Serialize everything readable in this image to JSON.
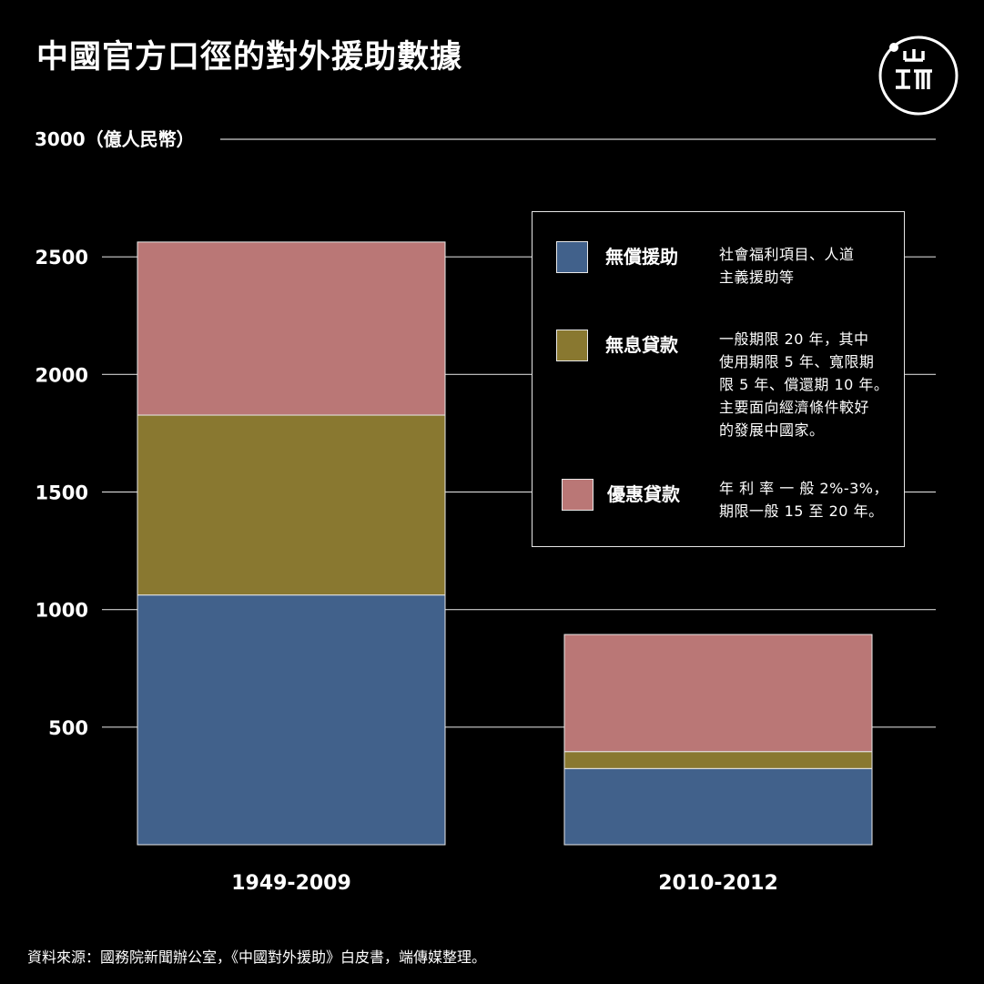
{
  "title": "中國官方口徑的對外援助數據",
  "source": "資料來源：國務院新聞辦公室，《中國對外援助》白皮書，端傳媒整理。",
  "colors": {
    "background": "#000000",
    "grant": "#41618b",
    "interest_free": "#897830",
    "concessional": "#ba7776",
    "gridline": "#cfcfcf"
  },
  "chart_data": {
    "type": "bar",
    "stacked": true,
    "categories": [
      "1949-2009",
      "2010-2012"
    ],
    "series": [
      {
        "name": "無償援助",
        "values": [
          1062,
          324
        ]
      },
      {
        "name": "無息貸款",
        "values": [
          765,
          72
        ]
      },
      {
        "name": "優惠貸款",
        "values": [
          736,
          498
        ]
      }
    ],
    "ylabel": "3000（億人民幣）",
    "yticks": [
      "500",
      "1000",
      "1500",
      "2000",
      "2500"
    ],
    "ylim": [
      0,
      3000
    ],
    "grid": true,
    "legend_position": "top-right"
  },
  "legend": [
    {
      "name": "無償援助",
      "desc": [
        "社會福利項目、人道",
        "主義援助等"
      ]
    },
    {
      "name": "無息貸款",
      "desc": [
        "一般期限 20 年，其中",
        "使用期限 5 年、寬限期",
        "限 5 年、償還期 10 年。",
        "主要面向經濟條件較好",
        "的發展中國家。"
      ]
    },
    {
      "name": "優惠貸款",
      "desc": [
        "年 利 率 一 般 2%-3%，",
        "期限一般 15 至 20 年。"
      ]
    }
  ],
  "logo_icon": "initium-logo-icon"
}
